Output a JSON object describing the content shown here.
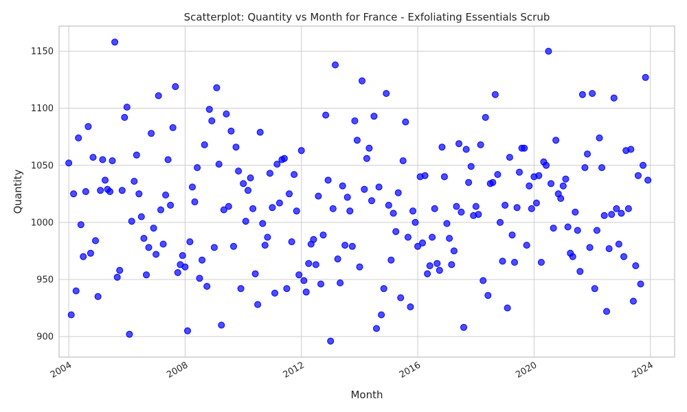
{
  "chart_data": {
    "type": "scatter",
    "title": "Scatterplot: Quantity vs Month for France - Exfoliating Essentials Scrub",
    "xlabel": "Month",
    "ylabel": "Quantity",
    "xlim": [
      "2003-09-01",
      "2024-11-01"
    ],
    "ylim": [
      882,
      1172
    ],
    "xticks": [
      "2004",
      "2008",
      "2012",
      "2016",
      "2020",
      "2024"
    ],
    "yticks": [
      900,
      950,
      1000,
      1050,
      1100,
      1150
    ],
    "grid": true,
    "marker_color": "#0000ff",
    "marker_alpha": 0.7,
    "x": [
      "2004-01",
      "2004-02",
      "2004-03",
      "2004-04",
      "2004-05",
      "2004-06",
      "2004-07",
      "2004-08",
      "2004-09",
      "2004-10",
      "2004-11",
      "2004-12",
      "2005-01",
      "2005-02",
      "2005-03",
      "2005-04",
      "2005-05",
      "2005-06",
      "2005-07",
      "2005-08",
      "2005-09",
      "2005-10",
      "2005-11",
      "2005-12",
      "2006-01",
      "2006-02",
      "2006-03",
      "2006-04",
      "2006-05",
      "2006-06",
      "2006-07",
      "2006-08",
      "2006-09",
      "2006-10",
      "2006-11",
      "2006-12",
      "2007-01",
      "2007-02",
      "2007-03",
      "2007-04",
      "2007-05",
      "2007-06",
      "2007-07",
      "2007-08",
      "2007-09",
      "2007-10",
      "2007-11",
      "2007-12",
      "2008-01",
      "2008-02",
      "2008-03",
      "2008-04",
      "2008-05",
      "2008-06",
      "2008-07",
      "2008-08",
      "2008-09",
      "2008-10",
      "2008-11",
      "2008-12",
      "2009-01",
      "2009-02",
      "2009-03",
      "2009-04",
      "2009-05",
      "2009-06",
      "2009-07",
      "2009-08",
      "2009-09",
      "2009-10",
      "2009-11",
      "2009-12",
      "2010-01",
      "2010-02",
      "2010-03",
      "2010-04",
      "2010-05",
      "2010-06",
      "2010-07",
      "2010-08",
      "2010-09",
      "2010-10",
      "2010-11",
      "2010-12",
      "2011-01",
      "2011-02",
      "2011-03",
      "2011-04",
      "2011-05",
      "2011-06",
      "2011-07",
      "2011-08",
      "2011-09",
      "2011-10",
      "2011-11",
      "2011-12",
      "2012-01",
      "2012-02",
      "2012-03",
      "2012-04",
      "2012-05",
      "2012-06",
      "2012-07",
      "2012-08",
      "2012-09",
      "2012-10",
      "2012-11",
      "2012-12",
      "2013-01",
      "2013-02",
      "2013-03",
      "2013-04",
      "2013-05",
      "2013-06",
      "2013-07",
      "2013-08",
      "2013-09",
      "2013-10",
      "2013-11",
      "2013-12",
      "2014-01",
      "2014-02",
      "2014-03",
      "2014-04",
      "2014-05",
      "2014-06",
      "2014-07",
      "2014-08",
      "2014-09",
      "2014-10",
      "2014-11",
      "2014-12",
      "2015-01",
      "2015-02",
      "2015-03",
      "2015-04",
      "2015-05",
      "2015-06",
      "2015-07",
      "2015-08",
      "2015-09",
      "2015-10",
      "2015-11",
      "2015-12",
      "2016-01",
      "2016-02",
      "2016-03",
      "2016-04",
      "2016-05",
      "2016-06",
      "2016-07",
      "2016-08",
      "2016-09",
      "2016-10",
      "2016-11",
      "2016-12",
      "2017-01",
      "2017-02",
      "2017-03",
      "2017-04",
      "2017-05",
      "2017-06",
      "2017-07",
      "2017-08",
      "2017-09",
      "2017-10",
      "2017-11",
      "2017-12",
      "2018-01",
      "2018-02",
      "2018-03",
      "2018-04",
      "2018-05",
      "2018-06",
      "2018-07",
      "2018-08",
      "2018-09",
      "2018-10",
      "2018-11",
      "2018-12",
      "2019-01",
      "2019-02",
      "2019-03",
      "2019-04",
      "2019-05",
      "2019-06",
      "2019-07",
      "2019-08",
      "2019-09",
      "2019-10",
      "2019-11",
      "2019-12",
      "2020-01",
      "2020-02",
      "2020-03",
      "2020-04",
      "2020-05",
      "2020-06",
      "2020-07",
      "2020-08",
      "2020-09",
      "2020-10",
      "2020-11",
      "2020-12",
      "2021-01",
      "2021-02",
      "2021-03",
      "2021-04",
      "2021-05",
      "2021-06",
      "2021-07",
      "2021-08",
      "2021-09",
      "2021-10",
      "2021-11",
      "2021-12",
      "2022-01",
      "2022-02",
      "2022-03",
      "2022-04",
      "2022-05",
      "2022-06",
      "2022-07",
      "2022-08",
      "2022-09",
      "2022-10",
      "2022-11",
      "2022-12",
      "2023-01",
      "2023-02",
      "2023-03",
      "2023-04",
      "2023-05",
      "2023-06",
      "2023-07",
      "2023-08",
      "2023-09",
      "2023-10",
      "2023-11",
      "2023-12"
    ],
    "y": [
      1052,
      919,
      1025,
      940,
      1074,
      998,
      970,
      1027,
      1084,
      973,
      1057,
      984,
      935,
      1028,
      1055,
      1037,
      1029,
      1027,
      1054,
      1158,
      952,
      958,
      1028,
      1092,
      1101,
      902,
      1001,
      1036,
      1059,
      1025,
      1005,
      986,
      954,
      978,
      1078,
      995,
      972,
      1111,
      1011,
      981,
      1024,
      1055,
      1015,
      1083,
      1119,
      956,
      963,
      971,
      961,
      905,
      983,
      1031,
      1018,
      1048,
      951,
      967,
      1068,
      944,
      1099,
      1089,
      978,
      1118,
      1051,
      910,
      1011,
      1095,
      1014,
      1080,
      979,
      1066,
      1045,
      942,
      1034,
      1001,
      1028,
      1039,
      1012,
      955,
      928,
      1079,
      999,
      980,
      987,
      1043,
      1013,
      938,
      1051,
      1017,
      1055,
      1056,
      942,
      1025,
      983,
      1042,
      1010,
      954,
      1063,
      949,
      939,
      964,
      981,
      985,
      963,
      1023,
      946,
      989,
      1094,
      1037,
      896,
      1012,
      1138,
      968,
      947,
      1032,
      980,
      1022,
      1010,
      979,
      1089,
      1072,
      961,
      1124,
      1029,
      1056,
      1065,
      1019,
      1093,
      907,
      1031,
      919,
      942,
      1113,
      1015,
      967,
      1008,
      992,
      1026,
      934,
      1054,
      1088,
      987,
      926,
      1010,
      1000,
      979,
      1040,
      982,
      1041,
      955,
      962,
      987,
      1012,
      964,
      958,
      1066,
      1040,
      999,
      986,
      963,
      975,
      1014,
      1069,
      1009,
      908,
      1064,
      1035,
      1049,
      1006,
      1014,
      1007,
      1068,
      949,
      1092,
      936,
      1034,
      1035,
      1112,
      1042,
      1000,
      966,
      1015,
      925,
      1057,
      989,
      965,
      1013,
      1044,
      1065,
      1065,
      980,
      1032,
      1012,
      1040,
      1017,
      1041,
      965,
      1053,
      1050,
      1150,
      1034,
      995,
      1072,
      1025,
      1021,
      1032,
      1038,
      996,
      973,
      970,
      1009,
      993,
      957,
      1112,
      1048,
      1060,
      978,
      1113,
      942,
      993,
      1074,
      1048,
      1006,
      922,
      977,
      1007,
      1109,
      1012,
      981,
      1008,
      970,
      1063,
      1012,
      1064,
      931,
      962,
      1041,
      946,
      1050,
      1127,
      1037
    ]
  }
}
